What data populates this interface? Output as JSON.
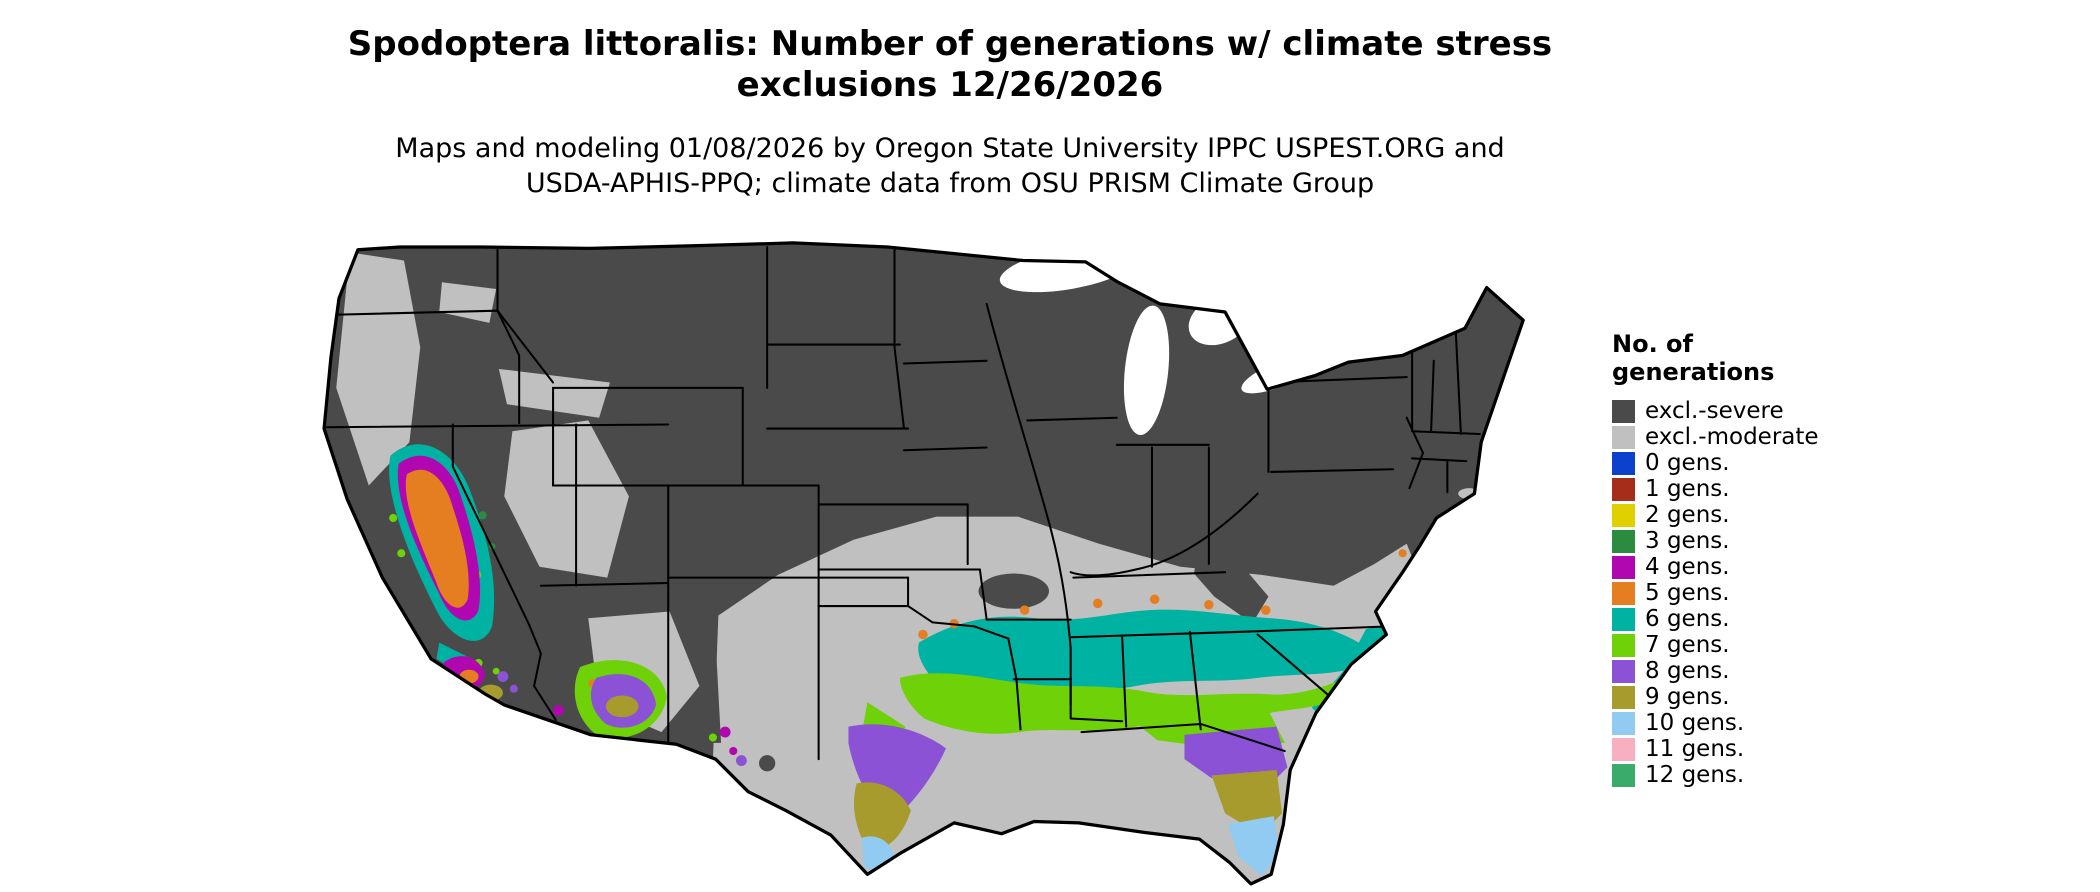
{
  "header": {
    "title": "Spodoptera littoralis: Number of generations w/ climate stress\nexclusions 12/26/2026",
    "subtitle": "Maps and modeling 01/08/2026 by Oregon State University IPPC USPEST.ORG and\nUSDA-APHIS-PPQ; climate data from OSU PRISM Climate Group"
  },
  "legend": {
    "title": "No. of\ngenerations",
    "items": [
      {
        "label": "excl.-severe",
        "color": "#4a4a4a"
      },
      {
        "label": "excl.-moderate",
        "color": "#c0c0c0"
      },
      {
        "label": "0 gens.",
        "color": "#0b41cc"
      },
      {
        "label": "1 gens.",
        "color": "#a52d1a"
      },
      {
        "label": "2 gens.",
        "color": "#e0d000"
      },
      {
        "label": "3 gens.",
        "color": "#2b8c3f"
      },
      {
        "label": "4 gens.",
        "color": "#b007b0"
      },
      {
        "label": "5 gens.",
        "color": "#e57e20"
      },
      {
        "label": "6 gens.",
        "color": "#00b2a2"
      },
      {
        "label": "7 gens.",
        "color": "#6fd107"
      },
      {
        "label": "8 gens.",
        "color": "#8b52d6"
      },
      {
        "label": "9 gens.",
        "color": "#a89b2d"
      },
      {
        "label": "10 gens.",
        "color": "#92cbf2"
      },
      {
        "label": "11 gens.",
        "color": "#f8b0c0"
      },
      {
        "label": "12 gens.",
        "color": "#3bab6b"
      }
    ]
  },
  "map": {
    "land_outline_color": "#000000",
    "water_color": "#ffffff"
  }
}
